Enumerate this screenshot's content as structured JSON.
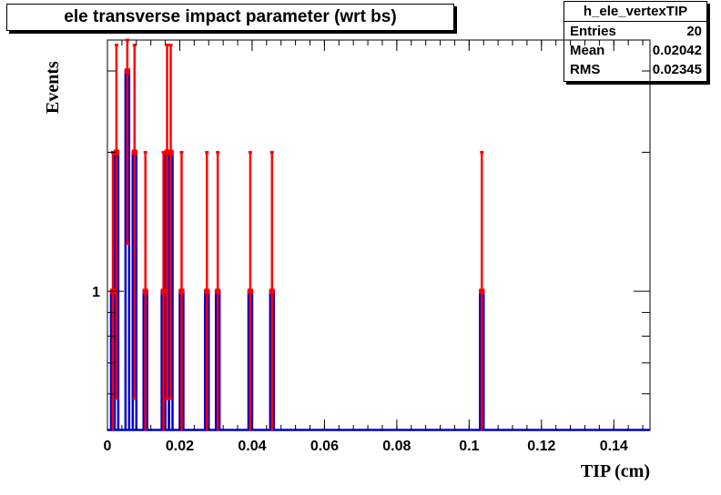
{
  "title": "ele transverse impact parameter (wrt bs)",
  "stats": {
    "name": "h_ele_vertexTIP",
    "rows": [
      {
        "label": "Entries",
        "value": "20"
      },
      {
        "label": "Mean",
        "value": "0.02042"
      },
      {
        "label": "RMS",
        "value": "0.02345"
      }
    ]
  },
  "colors": {
    "histogram": "#0000cc",
    "markers": "#ff0000",
    "axis": "#000000"
  },
  "chart_data": {
    "type": "bar",
    "title": "ele transverse impact parameter (wrt bs)",
    "xlabel": "TIP (cm)",
    "ylabel": "Events",
    "xlim": [
      0,
      0.15
    ],
    "ylim": [
      0.5,
      3.5
    ],
    "log_y": true,
    "bin_width": 0.001,
    "x_ticks": [
      "0",
      "0.02",
      "0.04",
      "0.06",
      "0.08",
      "0.1",
      "0.12",
      "0.14"
    ],
    "x_tick_values": [
      0,
      0.02,
      0.04,
      0.06,
      0.08,
      0.1,
      0.12,
      0.14
    ],
    "y_ticks": [
      "1"
    ],
    "y_tick_values": [
      1
    ],
    "series": [
      {
        "bins": [
          {
            "x": 0.0015,
            "value": 1
          },
          {
            "x": 0.0025,
            "value": 2
          },
          {
            "x": 0.0055,
            "value": 3
          },
          {
            "x": 0.0075,
            "value": 2
          },
          {
            "x": 0.0105,
            "value": 1
          },
          {
            "x": 0.0155,
            "value": 1
          },
          {
            "x": 0.0165,
            "value": 2
          },
          {
            "x": 0.0175,
            "value": 2
          },
          {
            "x": 0.0205,
            "value": 1
          },
          {
            "x": 0.0275,
            "value": 1
          },
          {
            "x": 0.0305,
            "value": 1
          },
          {
            "x": 0.0395,
            "value": 1
          },
          {
            "x": 0.0455,
            "value": 1
          },
          {
            "x": 0.1035,
            "value": 1
          }
        ]
      }
    ]
  }
}
